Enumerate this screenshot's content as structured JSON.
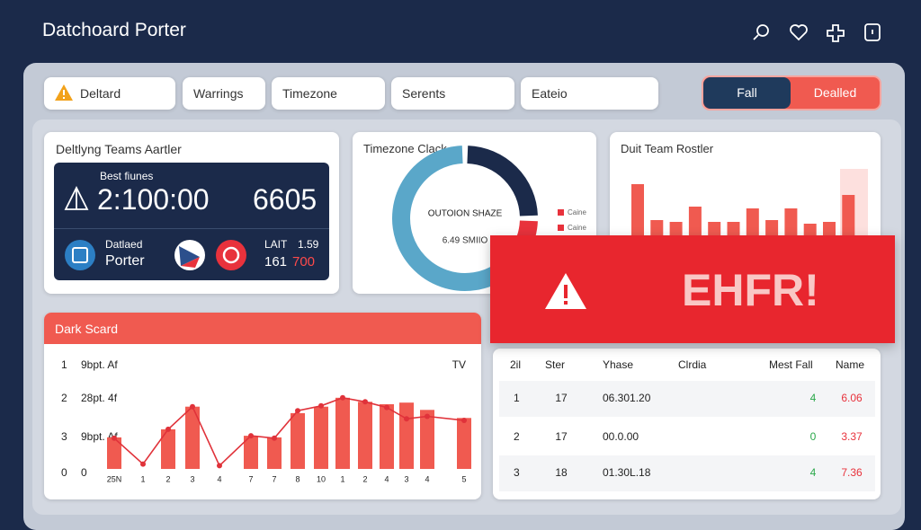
{
  "header": {
    "title": "Datchoard Porter"
  },
  "filters": [
    "Deltard",
    "Warrings",
    "Timezone",
    "Serents",
    "Eateio"
  ],
  "toggle": [
    "Fall",
    "Dealled"
  ],
  "summary": {
    "title": "Deltlyng Teams Aartler",
    "caption": "Best fiunes",
    "time": "2:100:00",
    "count": "6605",
    "name_top": "Datlaed",
    "name_bottom": "Porter",
    "stat_label": "LAIT",
    "stat_value": "1.59",
    "stat_a": "161",
    "stat_b": "700"
  },
  "donut": {
    "type": "pie",
    "title": "Timezone Clack",
    "center_title": "OUTOION SHAZE",
    "center_value": "6.49 SMIIO",
    "segments": [
      {
        "value": 25,
        "color": "#1b2a4a"
      },
      {
        "value": 15,
        "color": "#e8323c"
      },
      {
        "value": 60,
        "color": "#5aa7c9"
      }
    ],
    "legend": [
      "Caine",
      "Caine"
    ]
  },
  "roster": {
    "type": "bar",
    "title": "Duit Team Rostler",
    "values": [
      57,
      17,
      15,
      32,
      15,
      15,
      30,
      17,
      30,
      13,
      15,
      45
    ],
    "color": "#f05a50"
  },
  "alert": {
    "text": "EHFR!"
  },
  "trend": {
    "type": "bar",
    "title": "Dark Scard",
    "row_labels": [
      [
        "1",
        "9bpt. Af"
      ],
      [
        "2",
        "28pt. 4f"
      ],
      [
        "3",
        "9bpt. Af"
      ],
      [
        "0",
        "0"
      ]
    ],
    "right_label": "TV",
    "categories": [
      "25N",
      "1",
      "2",
      "3",
      "4",
      "7",
      "7",
      "8",
      "10",
      "1",
      "2",
      "4",
      "3",
      "4",
      "5"
    ],
    "bars": [
      39,
      null,
      49,
      77,
      null,
      41,
      39,
      69,
      77,
      88,
      83,
      80,
      82,
      73,
      63
    ],
    "line": [
      38,
      6,
      49,
      77,
      4,
      41,
      38,
      72,
      78,
      88,
      83,
      76,
      62,
      65,
      60
    ],
    "bar_color": "#f05a50",
    "line_color": "#e0323a"
  },
  "table": {
    "columns": [
      "2il",
      "Ster",
      "Yhase",
      "Clrdia",
      "Mest Fall",
      "Name"
    ],
    "rows": [
      [
        "1",
        "17",
        "06.301.20",
        "4",
        "6.06"
      ],
      [
        "2",
        "17",
        "00.0.00",
        "0",
        "3.37"
      ],
      [
        "3",
        "18",
        "01.30L.18",
        "4",
        "7.36"
      ]
    ]
  }
}
